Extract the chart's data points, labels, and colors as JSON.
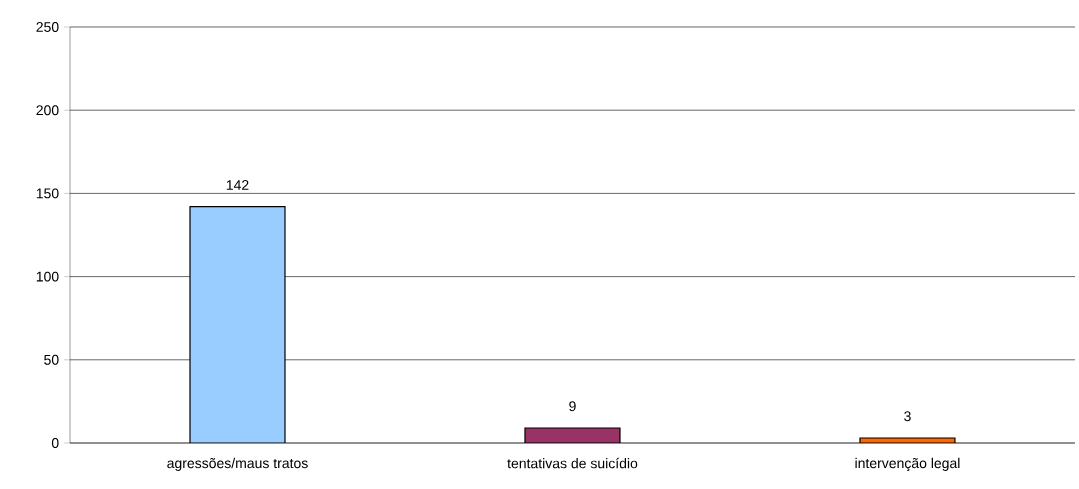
{
  "chart_data": {
    "type": "bar",
    "categories": [
      "agressões/maus tratos",
      "tentativas de suicídio",
      "intervenção legal"
    ],
    "values": [
      142,
      9,
      3
    ],
    "colors": [
      "#99ccff",
      "#993366",
      "#ff6600"
    ],
    "ylim": [
      0,
      250
    ],
    "yticks": [
      0,
      50,
      100,
      150,
      200,
      250
    ],
    "grid": "y",
    "data_labels": true
  }
}
